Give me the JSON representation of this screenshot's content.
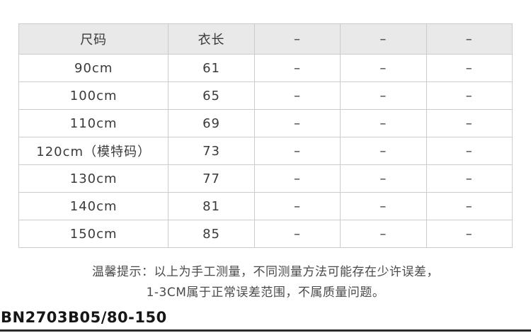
{
  "table": {
    "columns": [
      "尺码",
      "衣长",
      "–",
      "–",
      "–"
    ],
    "rows": [
      [
        "90cm",
        "61",
        "–",
        "–",
        "–"
      ],
      [
        "100cm",
        "65",
        "–",
        "–",
        "–"
      ],
      [
        "110cm",
        "69",
        "–",
        "–",
        "–"
      ],
      [
        "120cm（模特码）",
        "73",
        "–",
        "–",
        "–"
      ],
      [
        "130cm",
        "77",
        "–",
        "–",
        "–"
      ],
      [
        "140cm",
        "81",
        "–",
        "–",
        "–"
      ],
      [
        "150cm",
        "85",
        "–",
        "–",
        "–"
      ]
    ]
  },
  "note": {
    "line1": "温馨提示：以上为手工测量，不同测量方法可能存在少许误差，",
    "line2": "1-3CM属于正常误差范围，不属质量问题。"
  },
  "footer": {
    "product_code": "BN2703B05/80-150"
  },
  "colors": {
    "header_background": "#e9e9e9",
    "table_border": "#cccccc",
    "cell_text": "#3a3a3a",
    "note_text": "#4a4a4a",
    "product_code_text": "#161616",
    "bottom_bar": "#2b2b2b"
  },
  "chart_data": {
    "type": "table",
    "title": "",
    "columns": [
      "尺码",
      "衣长",
      "-",
      "-",
      "-"
    ],
    "rows": [
      [
        "90cm",
        "61",
        "-",
        "-",
        "-"
      ],
      [
        "100cm",
        "65",
        "-",
        "-",
        "-"
      ],
      [
        "110cm",
        "69",
        "-",
        "-",
        "-"
      ],
      [
        "120cm（模特码）",
        "73",
        "-",
        "-",
        "-"
      ],
      [
        "130cm",
        "77",
        "-",
        "-",
        "-"
      ],
      [
        "140cm",
        "81",
        "-",
        "-",
        "-"
      ],
      [
        "150cm",
        "85",
        "-",
        "-",
        "-"
      ]
    ],
    "sizes": [
      "90cm",
      "100cm",
      "110cm",
      "120cm（模特码）",
      "130cm",
      "140cm",
      "150cm"
    ],
    "garment_length_cm": [
      61,
      65,
      69,
      73,
      77,
      81,
      85
    ],
    "note_lines": [
      "温馨提示：以上为手工测量，不同测量方法可能存在少许误差，",
      "1-3CM属于正常误差范围，不属质量问题。"
    ],
    "product_code": "BN2703B05/80-150",
    "layout": {
      "header_shaded": true,
      "grid": true
    }
  }
}
